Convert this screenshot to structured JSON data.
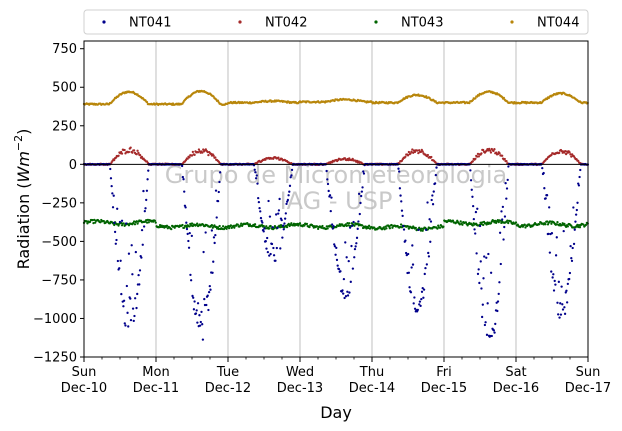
{
  "chart_data": {
    "type": "scatter",
    "xlabel": "Day",
    "ylabel_main": "Radiation (",
    "ylabel_unit": "Wm",
    "ylabel_exp": "−2",
    "ylabel_close": ")",
    "ylim": [
      -1250,
      800
    ],
    "xlim": [
      0,
      7
    ],
    "y_ticks": [
      -1250,
      -1000,
      -750,
      -500,
      -250,
      0,
      250,
      500,
      750
    ],
    "y_tick_labels": [
      "−1250",
      "−1000",
      "−750",
      "−500",
      "−250",
      "0",
      "250",
      "500",
      "750"
    ],
    "x_ticks": [
      {
        "x": 0,
        "day": "Sun",
        "date": "Dec-10"
      },
      {
        "x": 1,
        "day": "Mon",
        "date": "Dec-11"
      },
      {
        "x": 2,
        "day": "Tue",
        "date": "Dec-12"
      },
      {
        "x": 3,
        "day": "Wed",
        "date": "Dec-13"
      },
      {
        "x": 4,
        "day": "Thu",
        "date": "Dec-14"
      },
      {
        "x": 5,
        "day": "Fri",
        "date": "Dec-15"
      },
      {
        "x": 6,
        "day": "Sat",
        "date": "Dec-16"
      },
      {
        "x": 7,
        "day": "Sun",
        "date": "Dec-17"
      }
    ],
    "grid": "vertical",
    "zero_line": true,
    "legend_position": "top",
    "watermark_lines": [
      "Grupo de Micrometeorologia",
      "IAG - USP"
    ],
    "series": [
      {
        "name": "NT041",
        "color": "#00008b"
      },
      {
        "name": "NT042",
        "color": "#a52a2a"
      },
      {
        "name": "NT043",
        "color": "#006400"
      },
      {
        "name": "NT044",
        "color": "#b8860b"
      }
    ],
    "day_profiles": {
      "NT041_min": [
        -1130,
        -1150,
        -650,
        -880,
        -1010,
        -1200,
        -1020
      ],
      "NT042_max": [
        110,
        105,
        50,
        40,
        105,
        110,
        105
      ],
      "NT043_level": [
        -380,
        -400,
        -400,
        -400,
        -410,
        -380,
        -390
      ],
      "NT044_base": [
        390,
        390,
        400,
        405,
        400,
        400,
        400
      ],
      "NT044_peak": [
        470,
        475,
        410,
        420,
        450,
        470,
        460
      ]
    }
  }
}
